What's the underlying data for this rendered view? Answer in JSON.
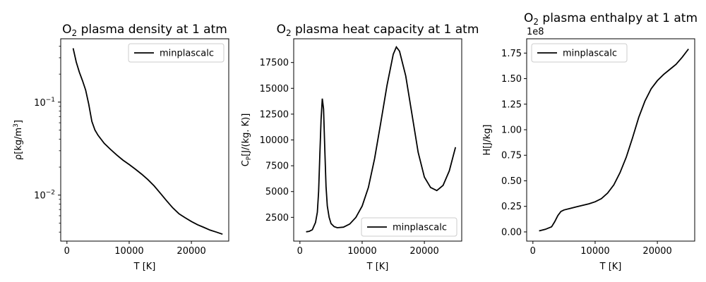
{
  "chart_data": [
    {
      "type": "line",
      "title": "O2 plasma density at 1 atm",
      "title_main": "O",
      "title_sub": "2",
      "title_rest": " plasma density at 1 atm",
      "xlabel": "T [K]",
      "ylabel": "ρ[kg/m3]",
      "ylabel_main": "ρ[kg/m",
      "ylabel_sup": "3",
      "ylabel_end": "]",
      "yscale": "log",
      "xlim": [
        -1000,
        26000
      ],
      "ylim": [
        0.0032,
        0.48
      ],
      "xticks": [
        0,
        10000,
        20000
      ],
      "xtick_labels": [
        "0",
        "10000",
        "20000"
      ],
      "yticks": [
        0.01,
        0.1
      ],
      "ytick_labels": [
        {
          "base": "10",
          "exp": "−2"
        },
        {
          "base": "10",
          "exp": "−1"
        }
      ],
      "legend_loc": "upper-right",
      "series": [
        {
          "name": "minplascalc",
          "color": "#000000",
          "x": [
            1000,
            1500,
            2000,
            2500,
            3000,
            3500,
            4000,
            4500,
            5000,
            6000,
            7000,
            8000,
            9000,
            10000,
            11000,
            12000,
            13000,
            14000,
            15000,
            16000,
            17000,
            18000,
            19000,
            20000,
            21000,
            22000,
            23000,
            24000,
            25000
          ],
          "y": [
            0.38,
            0.27,
            0.21,
            0.17,
            0.135,
            0.095,
            0.062,
            0.05,
            0.044,
            0.036,
            0.031,
            0.027,
            0.0238,
            0.0213,
            0.019,
            0.0168,
            0.0147,
            0.0126,
            0.0105,
            0.0087,
            0.0073,
            0.0063,
            0.0057,
            0.0052,
            0.0048,
            0.0045,
            0.0042,
            0.004,
            0.0038
          ]
        }
      ]
    },
    {
      "type": "line",
      "title": "O2 plasma heat capacity at 1 atm",
      "title_main": "O",
      "title_sub": "2",
      "title_rest": " plasma heat capacity at 1 atm",
      "xlabel": "T [K]",
      "ylabel": "CP[J/(kg. K)]",
      "ylabel_main": "C",
      "ylabel_sub": "P",
      "ylabel_end": "[J/(kg. K)]",
      "yscale": "linear",
      "xlim": [
        -1000,
        26000
      ],
      "ylim": [
        200,
        19800
      ],
      "xticks": [
        0,
        10000,
        20000
      ],
      "xtick_labels": [
        "0",
        "10000",
        "20000"
      ],
      "yticks": [
        2500,
        5000,
        7500,
        10000,
        12500,
        15000,
        17500
      ],
      "ytick_labels": [
        "2500",
        "5000",
        "7500",
        "10000",
        "12500",
        "15000",
        "17500"
      ],
      "legend_loc": "lower-right",
      "series": [
        {
          "name": "minplascalc",
          "color": "#000000",
          "x": [
            1000,
            1500,
            2000,
            2500,
            2800,
            3000,
            3200,
            3400,
            3600,
            3800,
            4000,
            4200,
            4400,
            4700,
            5000,
            5500,
            6000,
            7000,
            8000,
            9000,
            10000,
            11000,
            12000,
            13000,
            14000,
            15000,
            15500,
            16000,
            17000,
            18000,
            19000,
            20000,
            21000,
            22000,
            23000,
            24000,
            25000
          ],
          "y": [
            1100,
            1150,
            1300,
            2000,
            3000,
            5000,
            8500,
            12000,
            14000,
            13000,
            9000,
            5500,
            3600,
            2500,
            1900,
            1600,
            1500,
            1550,
            1850,
            2500,
            3600,
            5400,
            8200,
            11700,
            15300,
            18300,
            19000,
            18600,
            16200,
            12500,
            8800,
            6400,
            5400,
            5100,
            5600,
            7000,
            9300
          ]
        }
      ]
    },
    {
      "type": "line",
      "title": "O2 plasma enthalpy at 1 atm",
      "title_main": "O",
      "title_sub": "2",
      "title_rest": " plasma enthalpy at 1 atm",
      "xlabel": "T [K]",
      "ylabel": "H[J/kg]",
      "offset_text": "1e8",
      "yscale": "linear",
      "xlim": [
        -1000,
        26000
      ],
      "ylim": [
        -0.09,
        1.89
      ],
      "xticks": [
        0,
        10000,
        20000
      ],
      "xtick_labels": [
        "0",
        "10000",
        "20000"
      ],
      "yticks": [
        0,
        0.25,
        0.5,
        0.75,
        1.0,
        1.25,
        1.5,
        1.75
      ],
      "ytick_labels": [
        "0.00",
        "0.25",
        "0.50",
        "0.75",
        "1.00",
        "1.25",
        "1.50",
        "1.75"
      ],
      "legend_loc": "upper-left",
      "series": [
        {
          "name": "minplascalc",
          "color": "#000000",
          "x": [
            1000,
            2000,
            3000,
            3500,
            4000,
            4500,
            5000,
            6000,
            7000,
            8000,
            9000,
            10000,
            11000,
            12000,
            13000,
            14000,
            15000,
            16000,
            17000,
            18000,
            19000,
            20000,
            21000,
            22000,
            23000,
            24000,
            25000
          ],
          "y": [
            0.01,
            0.025,
            0.05,
            0.1,
            0.16,
            0.2,
            0.215,
            0.23,
            0.245,
            0.26,
            0.275,
            0.295,
            0.325,
            0.38,
            0.46,
            0.58,
            0.73,
            0.92,
            1.12,
            1.28,
            1.4,
            1.48,
            1.54,
            1.59,
            1.64,
            1.71,
            1.79
          ]
        }
      ]
    }
  ]
}
